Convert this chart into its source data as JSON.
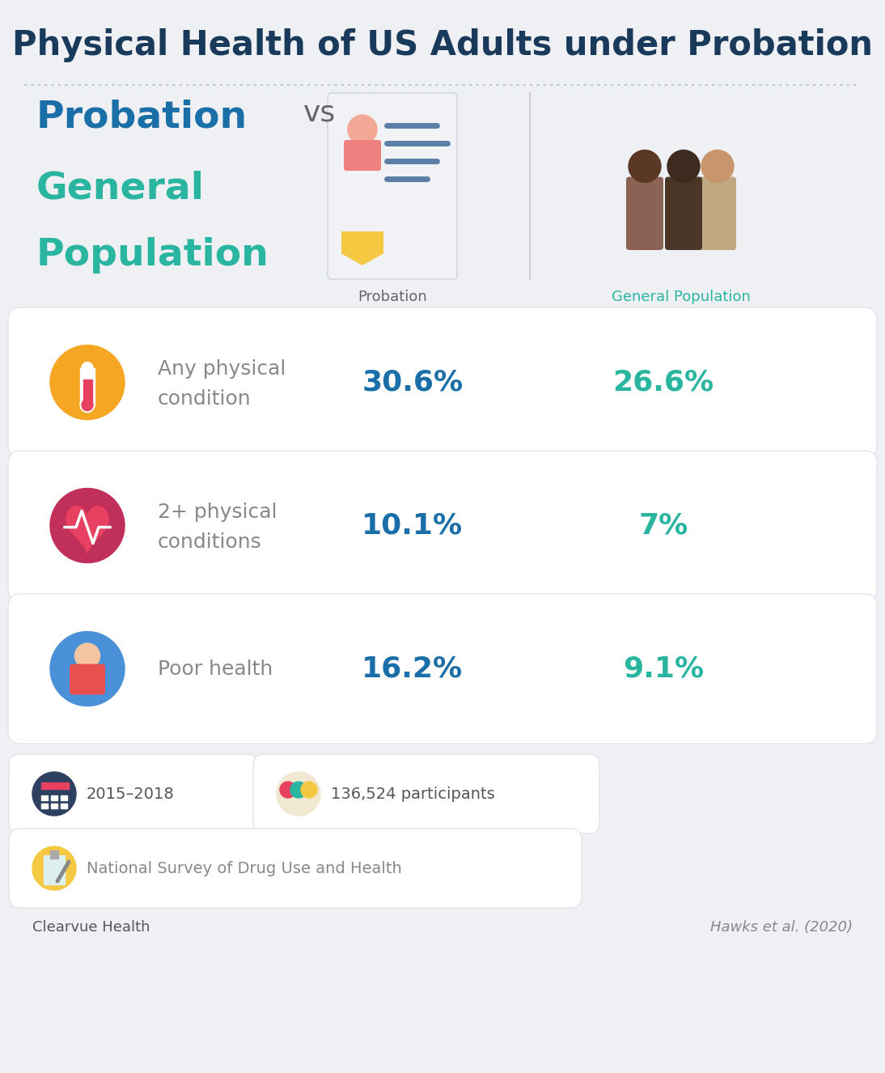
{
  "title": "Physical Health of US Adults under Probation",
  "title_color": "#1a3a5c",
  "background_color": "#eef0f4",
  "probation_color": "#1a6fa8",
  "general_color": "#2ab5a0",
  "col1_label": "Probation",
  "col2_label": "General Population",
  "rows": [
    {
      "label_line1": "Any physical",
      "label_line2": "condition",
      "val1": "30.6%",
      "val2": "26.6%",
      "icon_color": "#f5a623"
    },
    {
      "label_line1": "2+ physical",
      "label_line2": "conditions",
      "val1": "10.1%",
      "val2": "7%",
      "icon_color": "#c0305a"
    },
    {
      "label_line1": "Poor health",
      "label_line2": "",
      "val1": "16.2%",
      "val2": "9.1%",
      "icon_color": "#4a90d9"
    }
  ],
  "meta_items": [
    {
      "text": "2015–2018"
    },
    {
      "text": "136,524 participants"
    }
  ],
  "survey_text": "National Survey of Drug Use and Health",
  "footer_left": "Clearvue Health",
  "footer_right": "Hawks et al. (2020)"
}
